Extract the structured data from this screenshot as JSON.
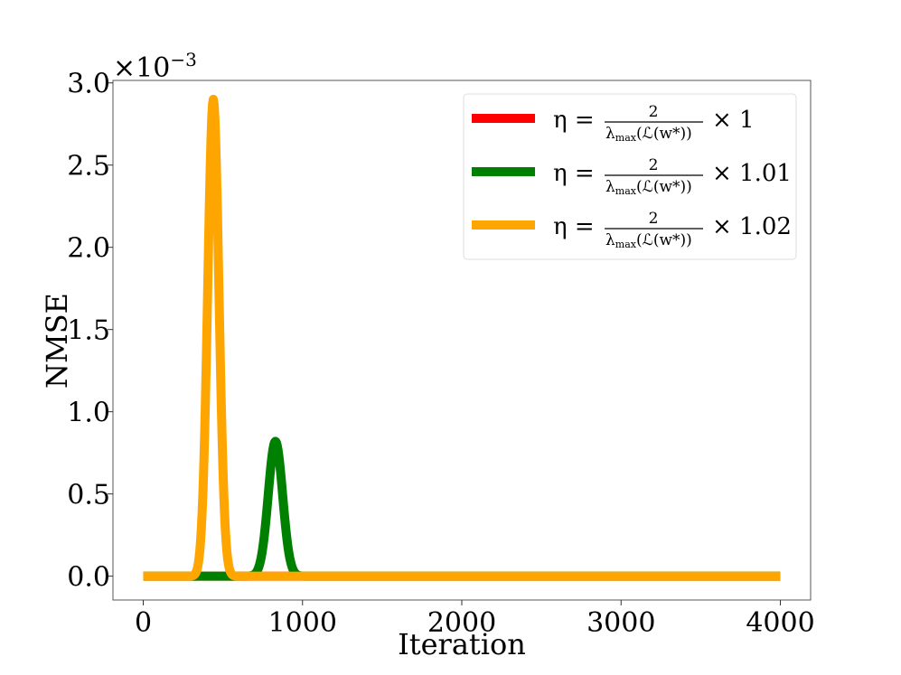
{
  "chart_data": {
    "type": "line",
    "xlabel": "Iteration",
    "ylabel": "NMSE",
    "xlim": [
      -190,
      4190
    ],
    "ylim": [
      -0.000145,
      0.003015
    ],
    "xticks": [
      0,
      1000,
      2000,
      3000,
      4000
    ],
    "xtick_labels": [
      "0",
      "1000",
      "2000",
      "3000",
      "4000"
    ],
    "yticks": [
      0.0,
      0.0005,
      0.001,
      0.0015,
      0.002,
      0.0025,
      0.003
    ],
    "ytick_labels": [
      "0.0",
      "0.5",
      "1.0",
      "1.5",
      "2.0",
      "2.5",
      "3.0"
    ],
    "y_offset_label": {
      "base": "×10",
      "exponent": "−3"
    },
    "grid": false,
    "legend_position": "top-right",
    "x_range": [
      0,
      4000
    ],
    "series": [
      {
        "name": "η = 2/λmax(ℒ(w*)) × 1",
        "legend": {
          "eta": "η =",
          "num": "2",
          "lambda": "λ",
          "max": "max",
          "arg": "(ℒ(w*))",
          "times": "× 1"
        },
        "color": "#ff0000",
        "baseline": 0.0,
        "peak_x": null,
        "peak_y": 0.0,
        "peak_width": 0
      },
      {
        "name": "η = 2/λmax(ℒ(w*)) × 1.01",
        "legend": {
          "eta": "η =",
          "num": "2",
          "lambda": "λ",
          "max": "max",
          "arg": "(ℒ(w*))",
          "times": "× 1.01"
        },
        "color": "#008000",
        "baseline": 0.0,
        "peak_x": 830,
        "peak_y": 0.00082,
        "peak_width": 45
      },
      {
        "name": "η = 2/λmax(ℒ(w*)) × 1.02",
        "legend": {
          "eta": "η =",
          "num": "2",
          "lambda": "λ",
          "max": "max",
          "arg": "(ℒ(w*))",
          "times": "× 1.02"
        },
        "color": "#ffa500",
        "baseline": 0.0,
        "peak_x": 440,
        "peak_y": 0.0029,
        "peak_width": 35
      }
    ]
  }
}
